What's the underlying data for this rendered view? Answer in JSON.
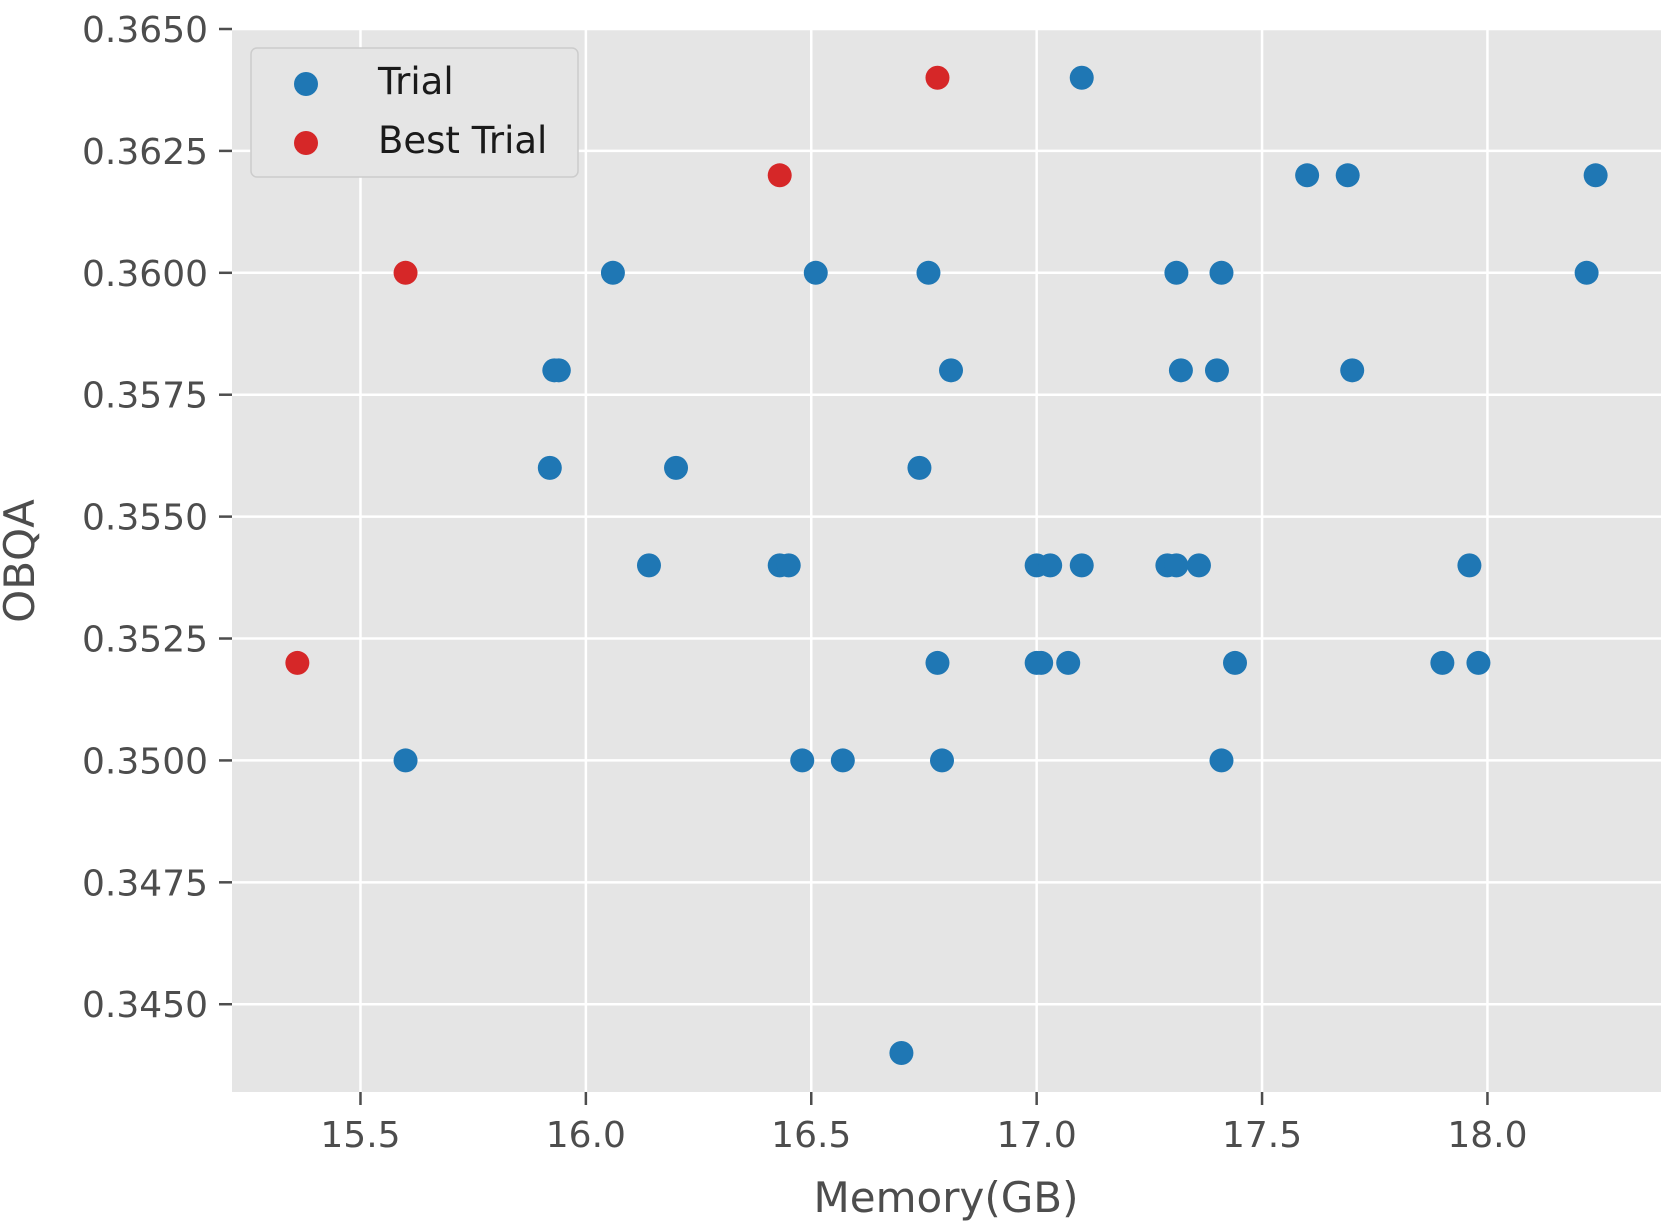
{
  "chart_data": {
    "type": "scatter",
    "title": "",
    "xlabel": "Memory(GB)",
    "ylabel": "OBQA",
    "xlim": [
      15.215,
      18.385
    ],
    "ylim": [
      0.3432,
      0.365
    ],
    "xticks": [
      15.5,
      16.0,
      16.5,
      17.0,
      17.5,
      18.0
    ],
    "xtick_labels": [
      "15.5",
      "16.0",
      "16.5",
      "17.0",
      "17.5",
      "18.0"
    ],
    "yticks": [
      0.345,
      0.3475,
      0.35,
      0.3525,
      0.355,
      0.3575,
      0.36,
      0.3625,
      0.365
    ],
    "ytick_labels": [
      "0.3450",
      "0.3475",
      "0.3500",
      "0.3525",
      "0.3550",
      "0.3575",
      "0.3600",
      "0.3625",
      "0.3650"
    ],
    "grid": true,
    "background": "#e5e5e5",
    "legend_position": "top-left",
    "series": [
      {
        "name": "Trial",
        "color": "#1f77b4",
        "points": [
          [
            17.1,
            0.364
          ],
          [
            17.6,
            0.362
          ],
          [
            17.69,
            0.362
          ],
          [
            18.24,
            0.362
          ],
          [
            16.06,
            0.36
          ],
          [
            16.51,
            0.36
          ],
          [
            16.76,
            0.36
          ],
          [
            17.31,
            0.36
          ],
          [
            17.41,
            0.36
          ],
          [
            18.22,
            0.36
          ],
          [
            15.93,
            0.358
          ],
          [
            15.94,
            0.358
          ],
          [
            16.81,
            0.358
          ],
          [
            17.32,
            0.358
          ],
          [
            17.4,
            0.358
          ],
          [
            17.7,
            0.358
          ],
          [
            15.92,
            0.356
          ],
          [
            16.2,
            0.356
          ],
          [
            16.74,
            0.356
          ],
          [
            16.14,
            0.354
          ],
          [
            16.43,
            0.354
          ],
          [
            16.45,
            0.354
          ],
          [
            17.0,
            0.354
          ],
          [
            17.03,
            0.354
          ],
          [
            17.1,
            0.354
          ],
          [
            17.29,
            0.354
          ],
          [
            17.31,
            0.354
          ],
          [
            17.36,
            0.354
          ],
          [
            17.96,
            0.354
          ],
          [
            16.78,
            0.352
          ],
          [
            17.0,
            0.352
          ],
          [
            17.01,
            0.352
          ],
          [
            17.07,
            0.352
          ],
          [
            17.44,
            0.352
          ],
          [
            17.9,
            0.352
          ],
          [
            17.98,
            0.352
          ],
          [
            15.6,
            0.35
          ],
          [
            16.48,
            0.35
          ],
          [
            16.57,
            0.35
          ],
          [
            16.79,
            0.35
          ],
          [
            17.41,
            0.35
          ],
          [
            16.7,
            0.344
          ]
        ]
      },
      {
        "name": "Best Trial",
        "color": "#d62728",
        "points": [
          [
            15.36,
            0.352
          ],
          [
            15.6,
            0.36
          ],
          [
            16.43,
            0.362
          ],
          [
            16.78,
            0.364
          ]
        ]
      }
    ]
  }
}
